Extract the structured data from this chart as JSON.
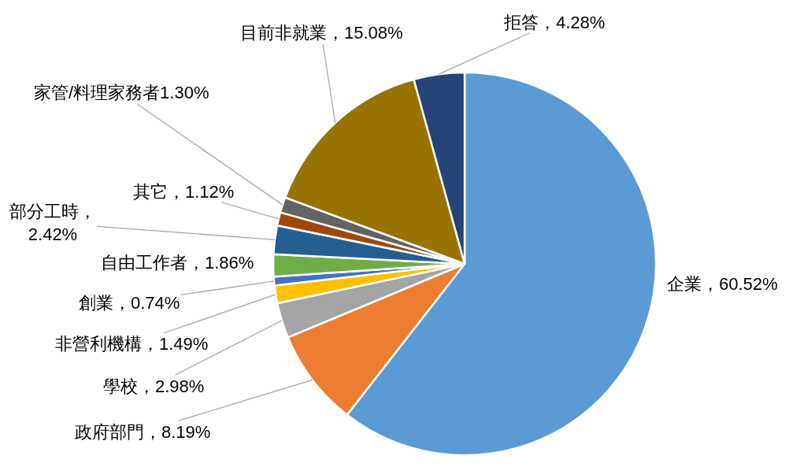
{
  "chart_data": {
    "type": "pie",
    "categories": [
      "企業",
      "政府部門",
      "學校",
      "非營利機構",
      "創業",
      "自由工作者",
      "部分工時",
      "其它",
      "家管/料理家務者",
      "目前非就業",
      "拒答"
    ],
    "values": [
      60.52,
      8.19,
      2.98,
      1.49,
      0.74,
      1.86,
      2.42,
      1.12,
      1.3,
      15.08,
      4.28
    ],
    "value_labels": [
      "，60.52%",
      "，8.19%",
      "，2.98%",
      "，1.49%",
      "，0.74%",
      "，1.86%",
      "，\n2.42%",
      "，1.12%",
      "1.30%",
      "，15.08%",
      "，4.28%"
    ],
    "colors": [
      "#5b9bd5",
      "#ed7d31",
      "#a5a5a5",
      "#ffc000",
      "#4472c4",
      "#70ad47",
      "#255e91",
      "#9e480e",
      "#636363",
      "#997300",
      "#264478"
    ],
    "legend": false
  }
}
